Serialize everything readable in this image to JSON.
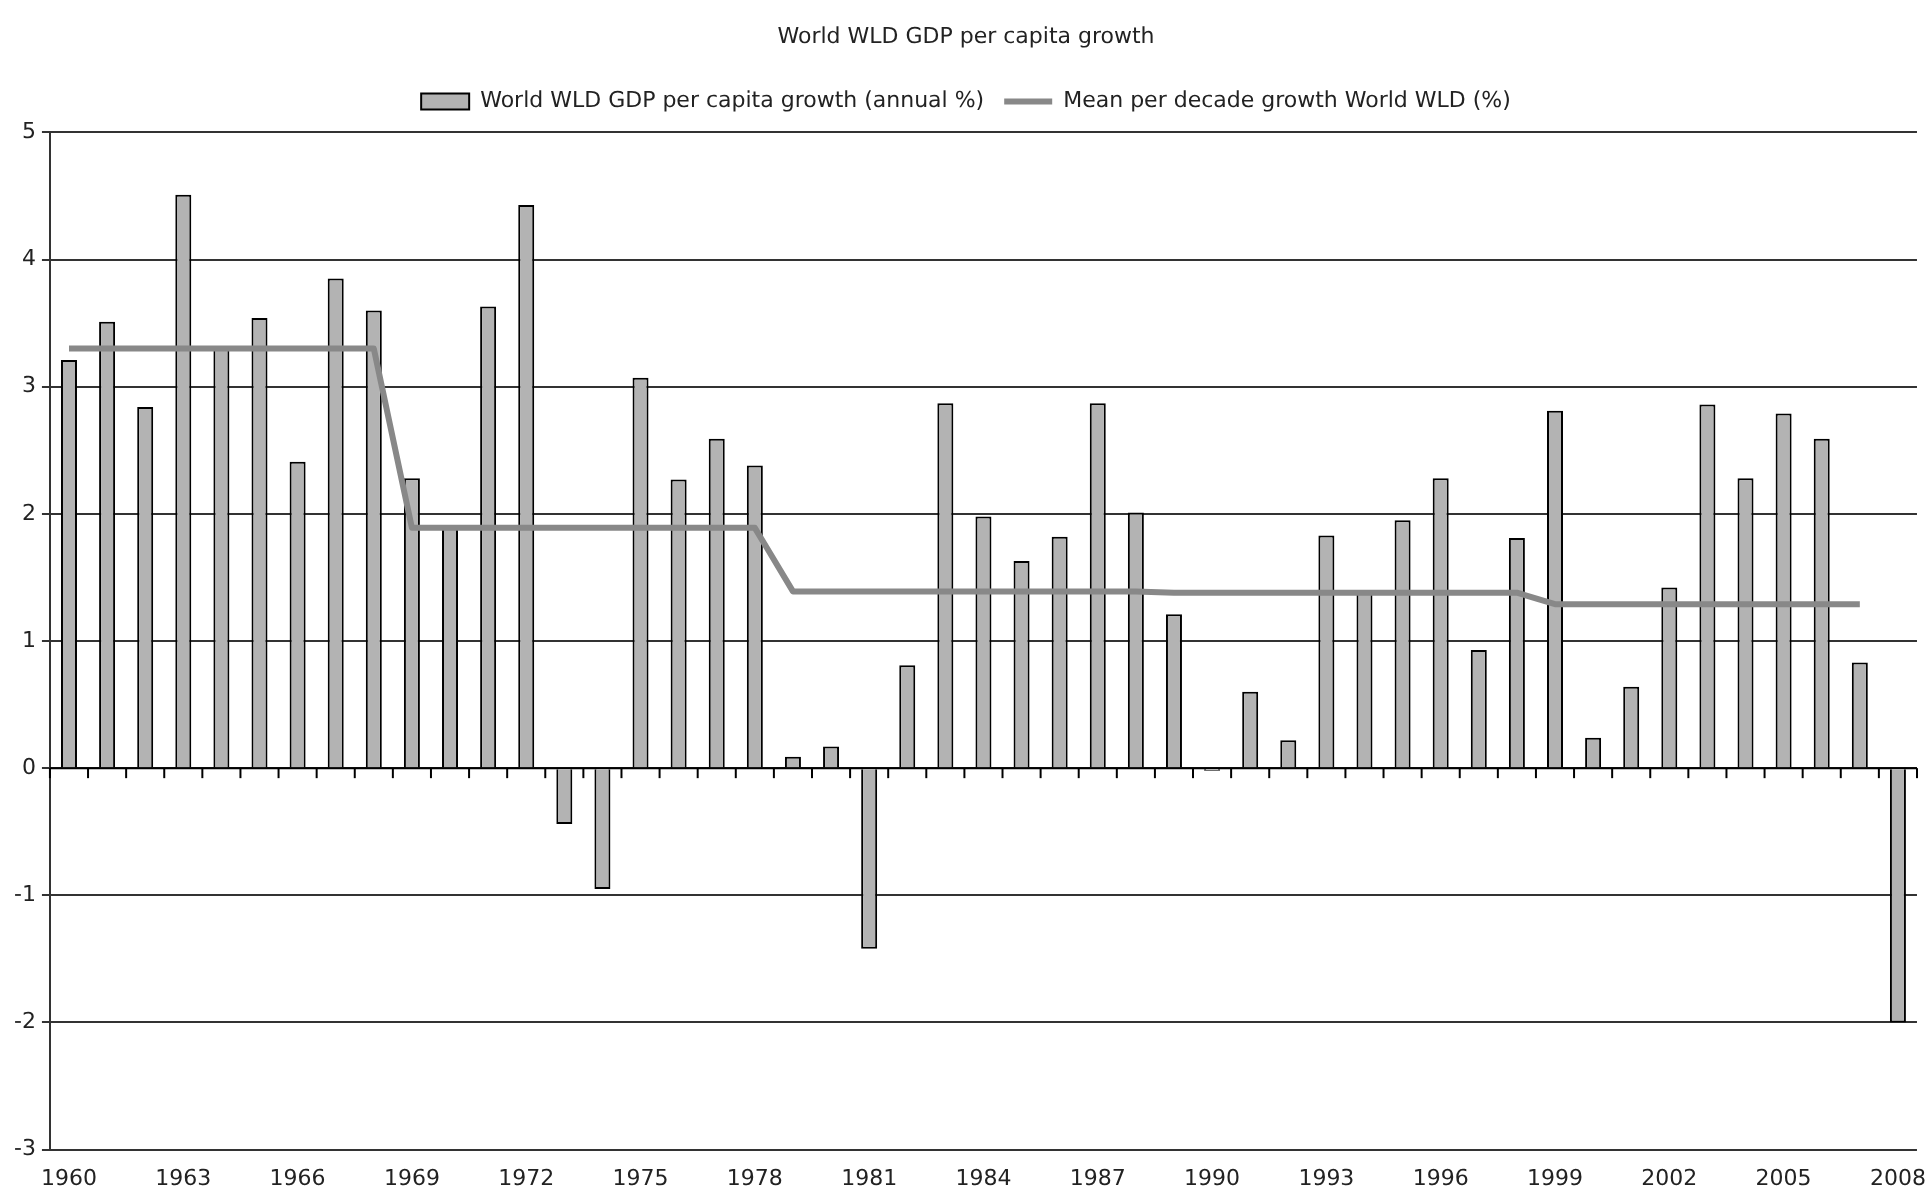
{
  "chart_data": {
    "type": "bar",
    "title": "World WLD GDP per capita growth",
    "categories": [
      "1960",
      null,
      null,
      "1963",
      null,
      null,
      "1966",
      null,
      null,
      "1969",
      null,
      null,
      "1972",
      null,
      null,
      "1975",
      null,
      null,
      "1978",
      null,
      null,
      "1981",
      null,
      null,
      "1984",
      null,
      null,
      "1987",
      null,
      null,
      "1990",
      null,
      null,
      "1993",
      null,
      null,
      "1996",
      null,
      null,
      "1999",
      null,
      null,
      "2002",
      null,
      null,
      "2005",
      null,
      null,
      "2008"
    ],
    "series": [
      {
        "name": "World WLD GDP per capita growth (annual %)",
        "color": "#b3b3b3",
        "values": [
          3.21,
          3.51,
          2.84,
          4.51,
          3.3,
          3.54,
          2.41,
          3.85,
          3.6,
          2.28,
          1.89,
          3.63,
          4.43,
          -0.44,
          -0.95,
          3.07,
          2.27,
          2.59,
          2.38,
          0.09,
          0.17,
          -1.42,
          0.81,
          2.87,
          1.98,
          1.63,
          1.82,
          2.87,
          2.01,
          1.21,
          -0.02,
          0.6,
          0.22,
          1.83,
          1.4,
          1.95,
          2.28,
          0.93,
          1.81,
          2.81,
          0.24,
          0.64,
          1.42,
          2.86,
          2.28,
          2.79,
          2.59,
          0.83,
          -2.0
        ]
      },
      {
        "name": "Mean per decade growth World WLD (%)",
        "type": "line",
        "color": "#888888",
        "values": [
          3.3,
          3.3,
          3.3,
          3.3,
          3.3,
          3.3,
          3.3,
          3.3,
          3.3,
          1.89,
          1.89,
          1.89,
          1.89,
          1.89,
          1.89,
          1.89,
          1.89,
          1.89,
          1.89,
          1.39,
          1.39,
          1.39,
          1.39,
          1.39,
          1.39,
          1.39,
          1.39,
          1.39,
          1.39,
          1.38,
          1.38,
          1.38,
          1.38,
          1.38,
          1.38,
          1.38,
          1.38,
          1.38,
          1.38,
          1.29,
          1.29,
          1.29,
          1.29,
          1.29,
          1.29,
          1.29,
          1.29,
          1.29,
          null
        ]
      }
    ],
    "ylim": [
      -3,
      5
    ],
    "yticks": [
      -3,
      -2,
      -1,
      0,
      1,
      2,
      3,
      4,
      5
    ],
    "grid": "y",
    "legend": "top",
    "marker": "none",
    "line_style": "solid"
  }
}
